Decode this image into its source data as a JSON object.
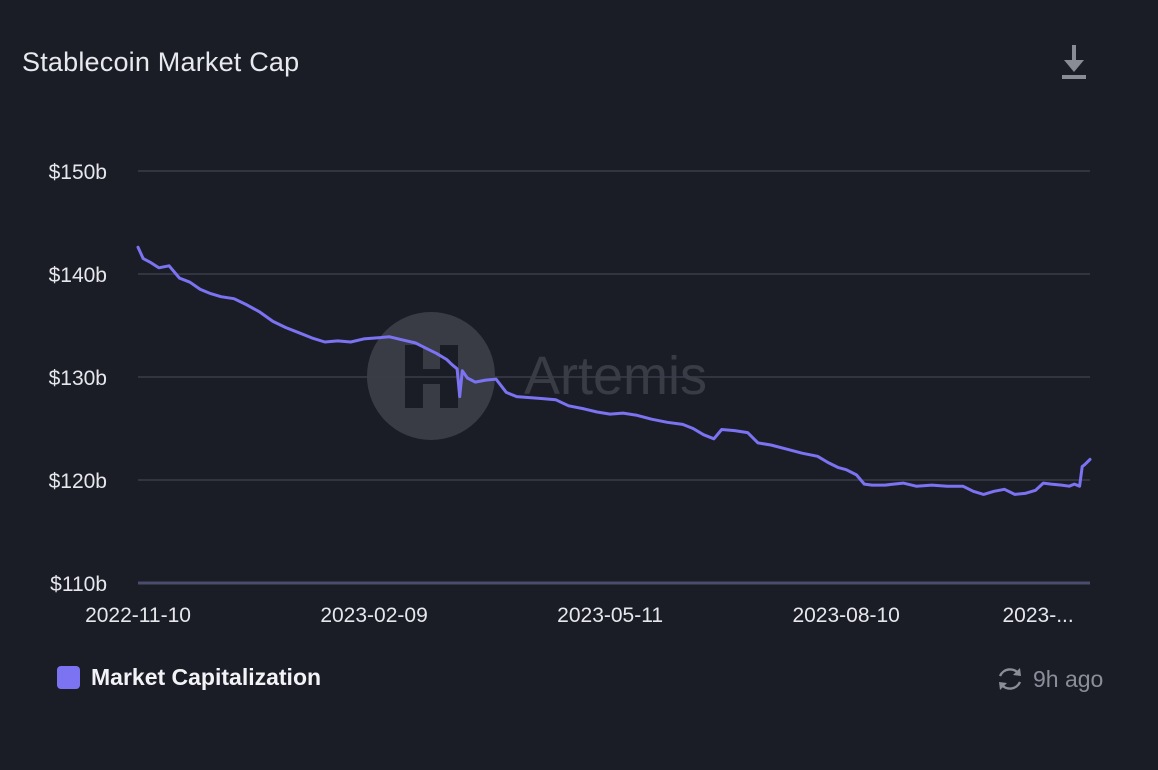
{
  "header": {
    "title": "Stablecoin Market Cap",
    "download_icon": "download-icon"
  },
  "watermark": {
    "text": "Artemis",
    "logo_icon": "artemis-logo-icon"
  },
  "footer": {
    "updated_text": "9h ago",
    "refresh_icon": "refresh-icon"
  },
  "colors": {
    "background": "#1b1d26",
    "series": "#7b73f2",
    "grid": "#3a3d48",
    "axis": "#4a4c6e"
  },
  "chart_data": {
    "type": "line",
    "title": "Stablecoin Market Cap",
    "xlabel": "",
    "ylabel": "",
    "ylim": [
      110,
      150
    ],
    "y_ticks": [
      {
        "value": 150,
        "label": "$150b"
      },
      {
        "value": 140,
        "label": "$140b"
      },
      {
        "value": 130,
        "label": "$130b"
      },
      {
        "value": 120,
        "label": "$120b"
      },
      {
        "value": 110,
        "label": "$110b"
      }
    ],
    "x_range": [
      "2022-11-10",
      "2023-11-12"
    ],
    "x_ticks": [
      {
        "date": "2022-11-10",
        "label": "2022-11-10"
      },
      {
        "date": "2023-02-09",
        "label": "2023-02-09"
      },
      {
        "date": "2023-05-11",
        "label": "2023-05-11"
      },
      {
        "date": "2023-08-10",
        "label": "2023-08-10"
      },
      {
        "date": "2023-10-23",
        "label": "2023-..."
      }
    ],
    "grid": true,
    "legend_position": "bottom-left",
    "series": [
      {
        "name": "Market Capitalization",
        "color": "#7b73f2",
        "points": [
          [
            "2022-11-10",
            142.6
          ],
          [
            "2022-11-12",
            141.5
          ],
          [
            "2022-11-15",
            141.1
          ],
          [
            "2022-11-18",
            140.6
          ],
          [
            "2022-11-22",
            140.8
          ],
          [
            "2022-11-26",
            139.6
          ],
          [
            "2022-11-30",
            139.2
          ],
          [
            "2022-12-04",
            138.5
          ],
          [
            "2022-12-08",
            138.1
          ],
          [
            "2022-12-12",
            137.8
          ],
          [
            "2022-12-17",
            137.6
          ],
          [
            "2022-12-22",
            137.0
          ],
          [
            "2022-12-27",
            136.3
          ],
          [
            "2023-01-01",
            135.4
          ],
          [
            "2023-01-06",
            134.8
          ],
          [
            "2023-01-11",
            134.3
          ],
          [
            "2023-01-16",
            133.8
          ],
          [
            "2023-01-21",
            133.4
          ],
          [
            "2023-01-26",
            133.5
          ],
          [
            "2023-01-31",
            133.4
          ],
          [
            "2023-02-05",
            133.7
          ],
          [
            "2023-02-10",
            133.8
          ],
          [
            "2023-02-15",
            133.9
          ],
          [
            "2023-02-20",
            133.6
          ],
          [
            "2023-02-25",
            133.3
          ],
          [
            "2023-03-01",
            132.8
          ],
          [
            "2023-03-05",
            132.3
          ],
          [
            "2023-03-09",
            131.7
          ],
          [
            "2023-03-11",
            131.2
          ],
          [
            "2023-03-13",
            130.8
          ],
          [
            "2023-03-14",
            128.1
          ],
          [
            "2023-03-15",
            130.6
          ],
          [
            "2023-03-17",
            129.9
          ],
          [
            "2023-03-20",
            129.5
          ],
          [
            "2023-03-24",
            129.7
          ],
          [
            "2023-03-28",
            129.8
          ],
          [
            "2023-04-01",
            128.5
          ],
          [
            "2023-04-05",
            128.1
          ],
          [
            "2023-04-10",
            128.0
          ],
          [
            "2023-04-15",
            127.9
          ],
          [
            "2023-04-20",
            127.8
          ],
          [
            "2023-04-25",
            127.2
          ],
          [
            "2023-05-01",
            126.9
          ],
          [
            "2023-05-06",
            126.6
          ],
          [
            "2023-05-11",
            126.4
          ],
          [
            "2023-05-16",
            126.5
          ],
          [
            "2023-05-21",
            126.3
          ],
          [
            "2023-05-27",
            125.9
          ],
          [
            "2023-06-02",
            125.6
          ],
          [
            "2023-06-08",
            125.4
          ],
          [
            "2023-06-12",
            125.0
          ],
          [
            "2023-06-16",
            124.4
          ],
          [
            "2023-06-20",
            124.0
          ],
          [
            "2023-06-23",
            124.9
          ],
          [
            "2023-06-28",
            124.8
          ],
          [
            "2023-07-03",
            124.6
          ],
          [
            "2023-07-07",
            123.6
          ],
          [
            "2023-07-12",
            123.4
          ],
          [
            "2023-07-18",
            123.0
          ],
          [
            "2023-07-24",
            122.6
          ],
          [
            "2023-07-30",
            122.3
          ],
          [
            "2023-08-03",
            121.7
          ],
          [
            "2023-08-07",
            121.2
          ],
          [
            "2023-08-10",
            121.0
          ],
          [
            "2023-08-14",
            120.5
          ],
          [
            "2023-08-17",
            119.6
          ],
          [
            "2023-08-20",
            119.5
          ],
          [
            "2023-08-25",
            119.5
          ],
          [
            "2023-09-01",
            119.7
          ],
          [
            "2023-09-06",
            119.4
          ],
          [
            "2023-09-12",
            119.5
          ],
          [
            "2023-09-18",
            119.4
          ],
          [
            "2023-09-24",
            119.4
          ],
          [
            "2023-09-28",
            118.9
          ],
          [
            "2023-10-02",
            118.6
          ],
          [
            "2023-10-06",
            118.9
          ],
          [
            "2023-10-10",
            119.1
          ],
          [
            "2023-10-14",
            118.6
          ],
          [
            "2023-10-18",
            118.7
          ],
          [
            "2023-10-22",
            119.0
          ],
          [
            "2023-10-25",
            119.7
          ],
          [
            "2023-10-28",
            119.6
          ],
          [
            "2023-11-01",
            119.5
          ],
          [
            "2023-11-04",
            119.4
          ],
          [
            "2023-11-06",
            119.6
          ],
          [
            "2023-11-08",
            119.4
          ],
          [
            "2023-11-09",
            121.3
          ],
          [
            "2023-11-10",
            121.5
          ],
          [
            "2023-11-12",
            122.0
          ]
        ]
      }
    ]
  }
}
